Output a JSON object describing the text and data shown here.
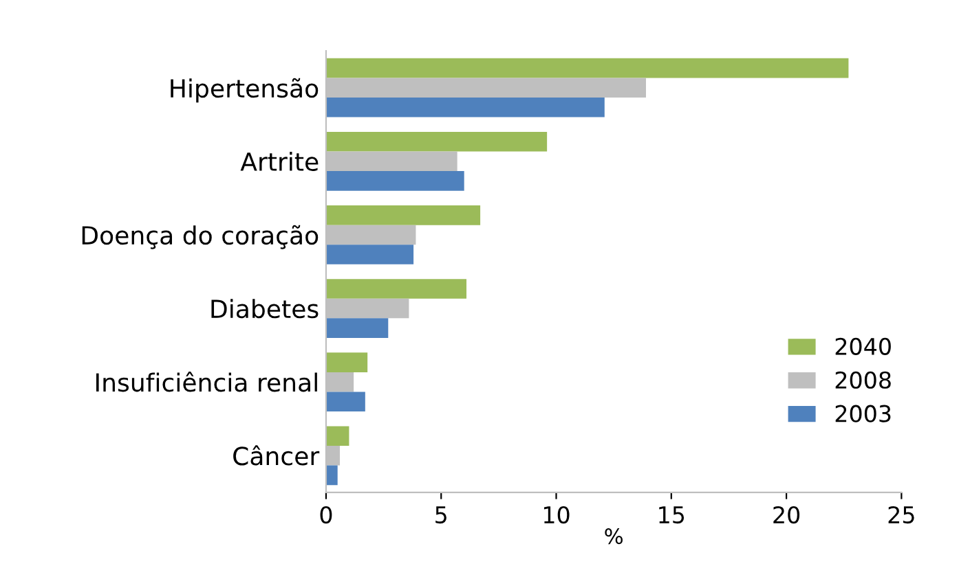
{
  "chart_data": {
    "type": "bar",
    "orientation": "horizontal",
    "xlabel": "%",
    "categories": [
      "Hipertensão",
      "Artrite",
      "Doença do coração",
      "Diabetes",
      "Insuficiência renal",
      "Câncer"
    ],
    "series": [
      {
        "name": "2040",
        "color": "#9bbb59",
        "values": [
          22.7,
          9.6,
          6.7,
          6.1,
          1.8,
          1.0
        ]
      },
      {
        "name": "2008",
        "color": "#bfbfbf",
        "values": [
          13.9,
          5.7,
          3.9,
          3.6,
          1.2,
          0.6
        ]
      },
      {
        "name": "2003",
        "color": "#4f81bd",
        "values": [
          12.1,
          6.0,
          3.8,
          2.7,
          1.7,
          0.5
        ]
      }
    ],
    "xlim": [
      0,
      25
    ],
    "xticks": [
      0,
      5,
      10,
      15,
      20,
      25
    ],
    "grid": false,
    "legend": "right"
  }
}
